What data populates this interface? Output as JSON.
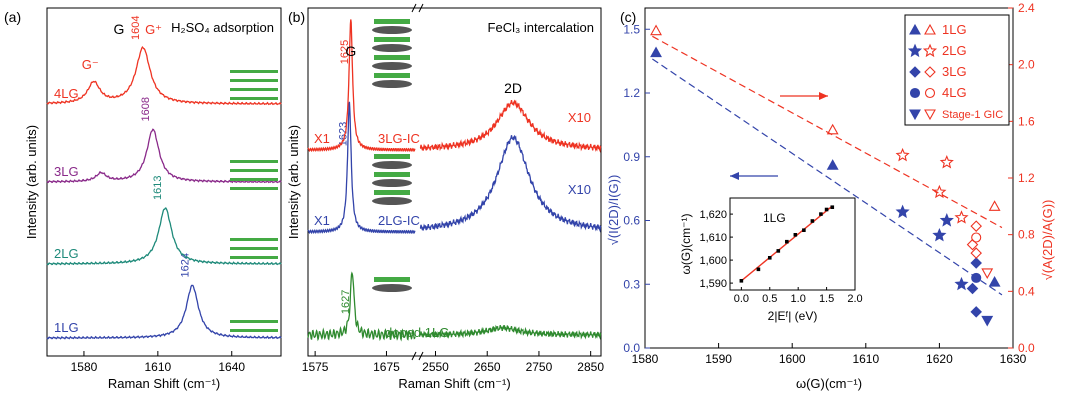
{
  "figure": {
    "panels": [
      {
        "label": "(a)",
        "title": "H₂SO₄ adsorption",
        "band_label": "G",
        "xlabel": "Raman Shift (cm⁻¹)",
        "ylabel": "Intensity (arb. units)"
      },
      {
        "label": "(b)",
        "title": "FeCl₃ intercalation",
        "band_labels": [
          "G",
          "2D"
        ],
        "xlabel": "Raman Shift (cm⁻¹)",
        "ylabel": "Intensity (arb. units)"
      },
      {
        "label": "(c)",
        "xlabel": "ω(G)(cm⁻¹)",
        "ylabel_left": "√(I(2D)/I(G))",
        "ylabel_right": "√(A(2D)/A(G))",
        "inset": {
          "label": "1LG",
          "xlabel": "2|E_F| (eV)",
          "ylabel": "ω(G)(cm⁻¹)"
        }
      }
    ]
  },
  "chart_data": [
    {
      "type": "line",
      "panel": "a",
      "xlim": [
        1565,
        1660
      ],
      "xticks": [
        1580,
        1610,
        1640
      ],
      "series": [
        {
          "name": "1LG",
          "color": "#3344aa",
          "peak_label": "1624",
          "peaks": [
            {
              "center": 1624,
              "height": 0.75,
              "width": 3
            }
          ]
        },
        {
          "name": "2LG",
          "color": "#1e8a7a",
          "peak_label": "1613",
          "peaks": [
            {
              "center": 1613,
              "height": 0.8,
              "width": 3.2
            }
          ]
        },
        {
          "name": "3LG",
          "color": "#8a2a8a",
          "peak_label": "1608",
          "peaks": [
            {
              "center": 1608,
              "height": 0.75,
              "width": 3
            },
            {
              "center": 1587,
              "height": 0.12,
              "width": 2.5
            }
          ]
        },
        {
          "name": "4LG",
          "color": "#ee3322",
          "peak_label": "1604",
          "peaks": [
            {
              "center": 1604,
              "height": 0.8,
              "width": 3.5
            },
            {
              "center": 1584,
              "height": 0.3,
              "width": 3
            }
          ]
        }
      ],
      "peak_tags": [
        "G⁻",
        "G⁺"
      ]
    },
    {
      "type": "line",
      "panel": "b",
      "xlim_left": [
        1565,
        1715
      ],
      "xlim_right": [
        2520,
        2870
      ],
      "xticks_left": [
        1575,
        1675
      ],
      "xticks_right": [
        2550,
        2650,
        2750,
        2850
      ],
      "series": [
        {
          "name": "doped 1LG",
          "color": "#2f8a2f",
          "peak_label": "1627",
          "G_center": 1627,
          "G_height": 0.55,
          "D2_center": 2680,
          "D2_height": 0.06
        },
        {
          "name": "2LG-IC",
          "color": "#3344aa",
          "peak_label": "1623",
          "G_center": 1623,
          "G_height": 1.1,
          "D2_center": 2700,
          "D2_height": 0.8,
          "scale_label": "X1",
          "D2_scale_label": "X10"
        },
        {
          "name": "3LG-IC",
          "color": "#ee3322",
          "peak_label": "1625",
          "G_center": 1625,
          "G_height": 1.1,
          "D2_center": 2700,
          "D2_height": 0.4,
          "scale_label": "X1",
          "D2_scale_label": "X10"
        }
      ]
    },
    {
      "type": "scatter",
      "panel": "c",
      "xlim": [
        1580,
        1630
      ],
      "xticks": [
        1580,
        1590,
        1600,
        1610,
        1620,
        1630
      ],
      "ylim_left": [
        0,
        1.6
      ],
      "yticks_left": [
        0.0,
        0.3,
        0.6,
        0.9,
        1.2,
        1.5
      ],
      "ylim_right": [
        0,
        2.4
      ],
      "yticks_right": [
        0.0,
        0.4,
        0.8,
        1.2,
        1.6,
        2.0,
        2.4
      ],
      "legend": [
        "1LG",
        "2LG",
        "3LG",
        "4LG",
        "Stage-1 GIC"
      ],
      "legend_position": "top-right",
      "series": [
        {
          "name": "1LG",
          "color_left": "#3344aa",
          "color_right": "#ee3322",
          "marker": "triangle-up",
          "left": [
            [
              1581.5,
              1.39
            ],
            [
              1605.5,
              0.86
            ],
            [
              1627.5,
              0.31
            ]
          ],
          "right": [
            [
              1581.5,
              2.24
            ],
            [
              1605.5,
              1.54
            ],
            [
              1627.5,
              1.0
            ]
          ]
        },
        {
          "name": "2LG",
          "marker": "star",
          "left": [
            [
              1615,
              0.64
            ],
            [
              1620,
              0.53
            ],
            [
              1621,
              0.6
            ],
            [
              1623,
              0.3
            ]
          ],
          "right": [
            [
              1615,
              1.36
            ],
            [
              1621,
              1.31
            ],
            [
              1620,
              1.1
            ],
            [
              1623,
              0.92
            ]
          ]
        },
        {
          "name": "3LG",
          "marker": "diamond",
          "left": [
            [
              1625,
              0.17
            ],
            [
              1625,
              0.4
            ],
            [
              1624.5,
              0.28
            ]
          ],
          "right": [
            [
              1625,
              0.86
            ],
            [
              1625,
              0.67
            ],
            [
              1624.5,
              0.73
            ]
          ]
        },
        {
          "name": "4LG",
          "marker": "circle",
          "left": [
            [
              1625,
              0.33
            ]
          ],
          "right": [
            [
              1625,
              0.78
            ]
          ]
        },
        {
          "name": "Stage-1 GIC",
          "marker": "triangle-down",
          "left": [
            [
              1626.5,
              0.13
            ]
          ],
          "right": [
            [
              1626.5,
              0.53
            ]
          ]
        }
      ],
      "fits": [
        {
          "axis": "left",
          "color": "#3344aa",
          "from": [
            1581,
            1.36
          ],
          "to": [
            1628.5,
            0.25
          ]
        },
        {
          "axis": "right",
          "color": "#ee3322",
          "from": [
            1581,
            2.2
          ],
          "to": [
            1628.5,
            0.85
          ]
        }
      ],
      "inset": {
        "xlim": [
          -0.2,
          2.0
        ],
        "xticks": [
          0.0,
          0.5,
          1.0,
          1.5,
          2.0
        ],
        "ylim": [
          1587,
          1627
        ],
        "yticks": [
          1590,
          1600,
          1610,
          1620
        ],
        "points": [
          [
            0,
            1591
          ],
          [
            0.3,
            1596
          ],
          [
            0.5,
            1601
          ],
          [
            0.65,
            1604
          ],
          [
            0.8,
            1608
          ],
          [
            0.95,
            1611
          ],
          [
            1.1,
            1613
          ],
          [
            1.25,
            1617
          ],
          [
            1.4,
            1620
          ],
          [
            1.5,
            1622
          ],
          [
            1.6,
            1623
          ]
        ],
        "fit": [
          [
            0,
            1591
          ],
          [
            1.6,
            1623.5
          ]
        ]
      }
    }
  ]
}
